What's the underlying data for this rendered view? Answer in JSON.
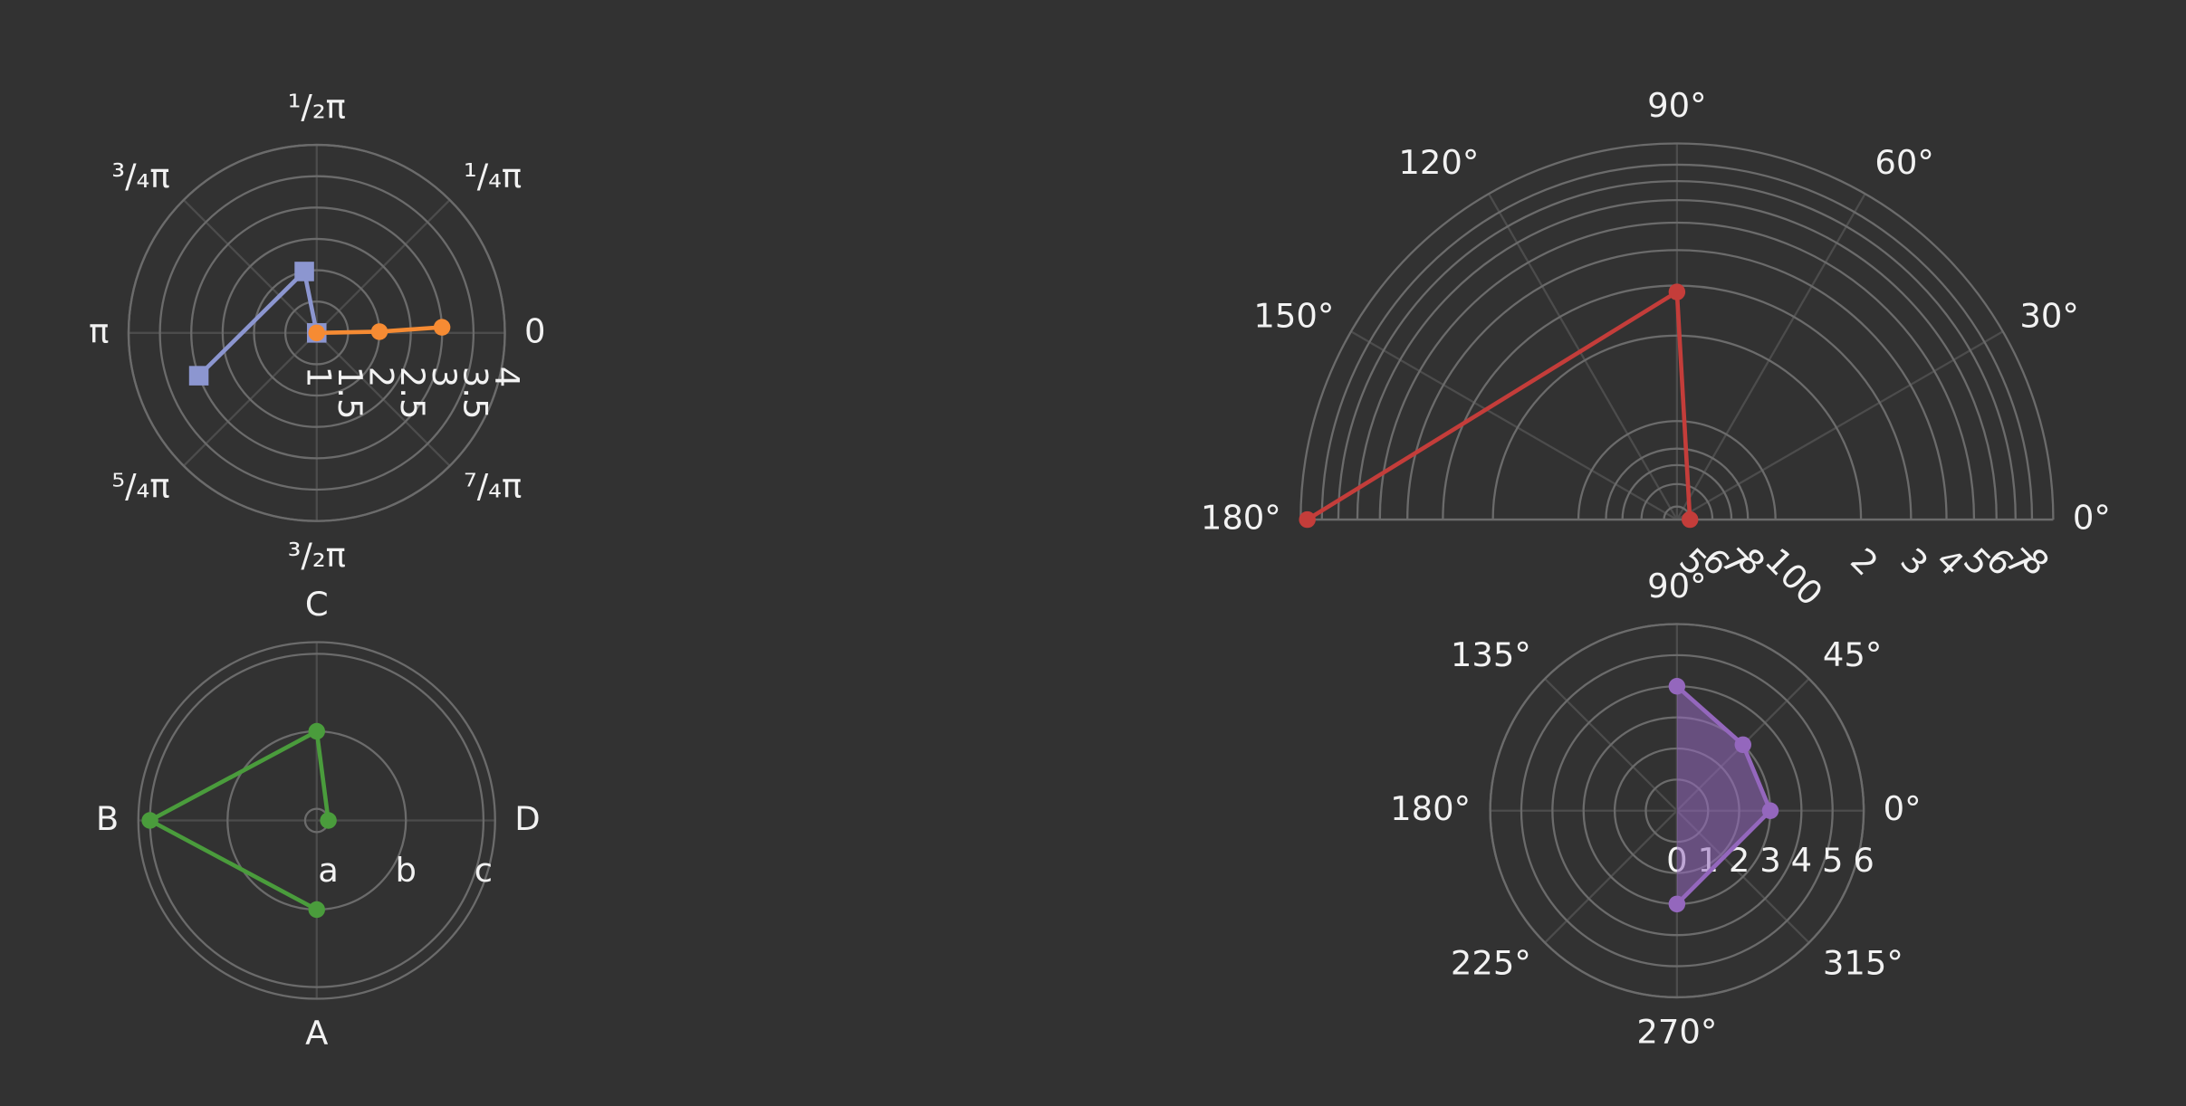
{
  "chart_data": [
    {
      "type": "polar",
      "angular_unit": "radians",
      "direction": "counterclockwise",
      "rotation": 0,
      "thetaticks": [
        {
          "value": 0,
          "label": "0"
        },
        {
          "value": 0.7854,
          "label": "¹/₄π"
        },
        {
          "value": 1.5708,
          "label": "¹/₂π"
        },
        {
          "value": 2.3562,
          "label": "³/₄π"
        },
        {
          "value": 3.1416,
          "label": "π"
        },
        {
          "value": 3.927,
          "label": "⁵/₄π"
        },
        {
          "value": 4.7124,
          "label": "³/₂π"
        },
        {
          "value": 5.4978,
          "label": "⁷/₄π"
        }
      ],
      "rlim": [
        1,
        4
      ],
      "rticks": [
        1,
        1.5,
        2,
        2.5,
        3,
        3.5,
        4
      ],
      "series": [
        {
          "color": "#8c96d0",
          "marker": "square",
          "r": [
            1,
            2,
            3
          ],
          "theta": [
            0,
            1.77,
            3.49
          ]
        },
        {
          "color": "#f68b33",
          "marker": "circle",
          "r": [
            1,
            2,
            3
          ],
          "theta": [
            0,
            0.02,
            0.045
          ]
        }
      ]
    },
    {
      "type": "polar",
      "direction": "clockwise",
      "rotation": 270,
      "thetacategories": [
        "A",
        "B",
        "C",
        "D"
      ],
      "rcategories": [
        "a",
        "b",
        "c"
      ],
      "rlim": [
        -0.15,
        2.15
      ],
      "series": [
        {
          "color": "#4a9c3c",
          "marker": "circle",
          "r": [
            "b",
            "c",
            "b",
            "a"
          ],
          "theta": [
            "A",
            "B",
            "C",
            "D"
          ]
        }
      ]
    },
    {
      "type": "polar",
      "direction": "counterclockwise",
      "rotation": 0,
      "thetalim": [
        0,
        180
      ],
      "thetaticks": [
        {
          "value": 0,
          "label": "0°"
        },
        {
          "value": 30,
          "label": "30°"
        },
        {
          "value": 60,
          "label": "60°"
        },
        {
          "value": 90,
          "label": "90°"
        },
        {
          "value": 120,
          "label": "120°"
        },
        {
          "value": 150,
          "label": "150°"
        },
        {
          "value": 180,
          "label": "180°"
        }
      ],
      "rlog": true,
      "rlim": [
        45,
        950
      ],
      "rticks": [
        {
          "value": 50,
          "label": "5"
        },
        {
          "value": 60,
          "label": "6"
        },
        {
          "value": 70,
          "label": "7"
        },
        {
          "value": 80,
          "label": "8"
        },
        100,
        {
          "value": 200,
          "label": "2"
        },
        {
          "value": 300,
          "label": "3"
        },
        {
          "value": 400,
          "label": "4"
        },
        {
          "value": 500,
          "label": "5"
        },
        {
          "value": 600,
          "label": "6"
        },
        {
          "value": 700,
          "label": "7"
        },
        {
          "value": 800,
          "label": "8"
        }
      ],
      "series": [
        {
          "color": "#c43d3a",
          "marker": "circle",
          "r": [
            50,
            285,
            900
          ],
          "theta": [
            0,
            90,
            180
          ]
        }
      ]
    },
    {
      "type": "polar",
      "direction": "counterclockwise",
      "rotation": 0,
      "thetaticks": [
        {
          "value": 0,
          "label": "0°"
        },
        {
          "value": 45,
          "label": "45°"
        },
        {
          "value": 90,
          "label": "90°"
        },
        {
          "value": 135,
          "label": "135°"
        },
        {
          "value": 180,
          "label": "180°"
        },
        {
          "value": 225,
          "label": "225°"
        },
        {
          "value": 270,
          "label": "270°"
        },
        {
          "value": 315,
          "label": "315°"
        }
      ],
      "rlim": [
        0,
        6
      ],
      "rticks": [
        0,
        1,
        2,
        3,
        4,
        5,
        6
      ],
      "series": [
        {
          "color": "#9467bd",
          "marker": "circle",
          "fill": "toself",
          "r": [
            4,
            3,
            3,
            3
          ],
          "theta": [
            90,
            45,
            0,
            270
          ]
        }
      ]
    }
  ]
}
